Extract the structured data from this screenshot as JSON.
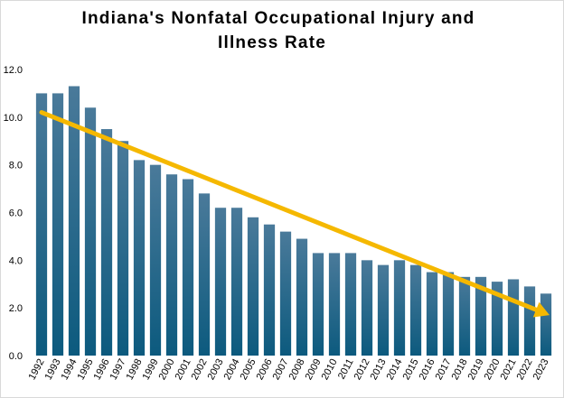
{
  "chart_data": {
    "type": "bar",
    "title_lines": [
      "Indiana's Nonfatal Occupational Injury and",
      "Illness Rate"
    ],
    "categories": [
      "1992",
      "1993",
      "1994",
      "1995",
      "1996",
      "1997",
      "1998",
      "1999",
      "2000",
      "2001",
      "2002",
      "2003",
      "2004",
      "2005",
      "2006",
      "2007",
      "2008",
      "2009",
      "2010",
      "2011",
      "2012",
      "2013",
      "2014",
      "2015",
      "2016",
      "2017",
      "2018",
      "2019",
      "2020",
      "2021",
      "2022",
      "2023"
    ],
    "values": [
      11.0,
      11.0,
      11.3,
      10.4,
      9.5,
      9.0,
      8.2,
      8.0,
      7.6,
      7.4,
      6.8,
      6.2,
      6.2,
      5.8,
      5.5,
      5.2,
      4.9,
      4.3,
      4.3,
      4.3,
      4.0,
      3.8,
      4.0,
      3.8,
      3.5,
      3.5,
      3.3,
      3.3,
      3.1,
      3.2,
      2.9,
      2.6
    ],
    "ylim": [
      0,
      12
    ],
    "yticks": [
      "0.0",
      "2.0",
      "4.0",
      "6.0",
      "8.0",
      "10.0",
      "12.0"
    ],
    "grid": false,
    "bar_color_top": "#4a7a9a",
    "bar_color_bottom": "#0c5a7e",
    "trend_arrow": {
      "start": {
        "category": "1992",
        "value": 10.2
      },
      "end": {
        "category": "2023",
        "value": 1.7
      },
      "color": "#f5b800"
    }
  }
}
